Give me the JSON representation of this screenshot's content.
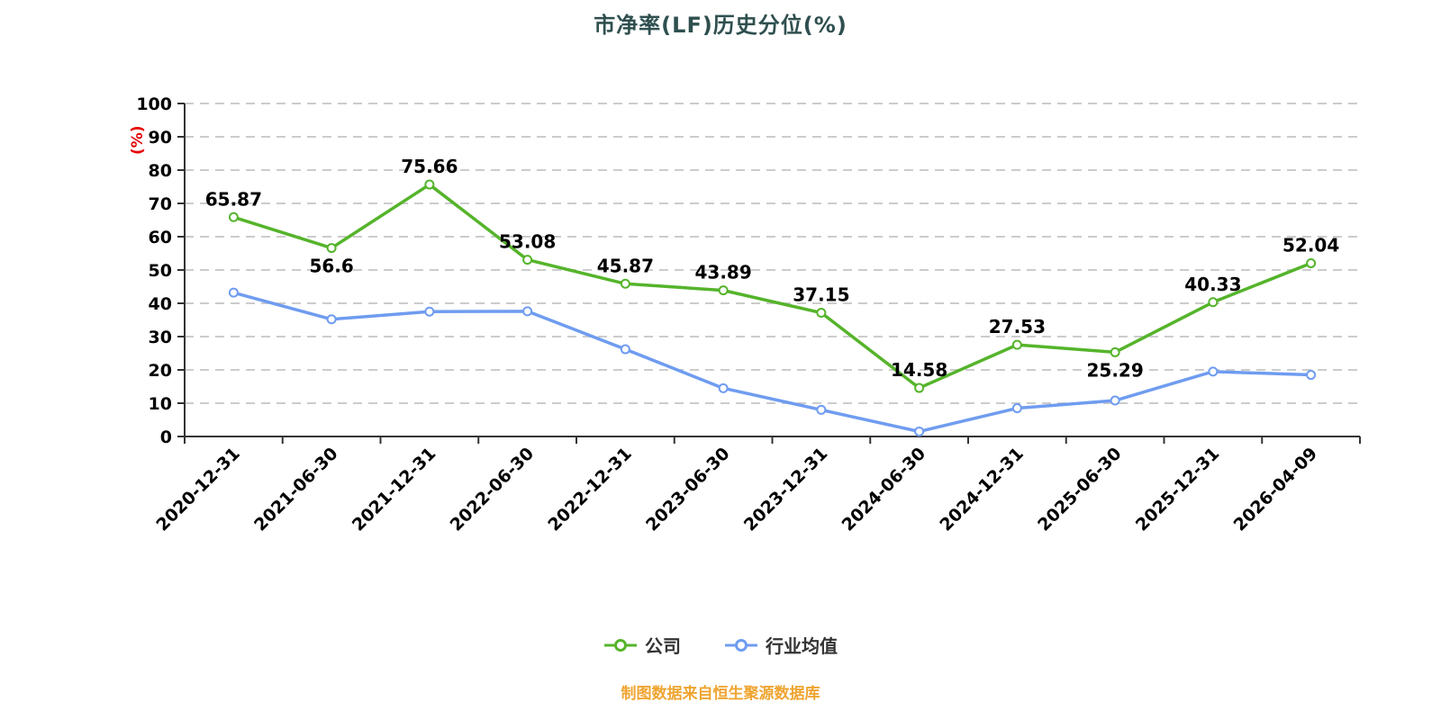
{
  "title": "市净率(LF)历史分位(%)",
  "source_note": "制图数据来自恒生聚源数据库",
  "legend": [
    {
      "label": "公司",
      "color": "#55b42b"
    },
    {
      "label": "行业均值",
      "color": "#6f9cf0"
    }
  ],
  "colors": {
    "title": "#2f4f4f",
    "grid": "#cccccc",
    "axis": "#333333",
    "tick_text": "#000000",
    "value_label": "#000000",
    "unit": "#e60000",
    "source_note": "#efa430",
    "company": "#55b42b",
    "industry": "#6f9cf0"
  },
  "chart_data": {
    "type": "line",
    "title": "市净率(LF)历史分位(%)",
    "categories": [
      "2020-12-31",
      "2021-06-30",
      "2021-12-31",
      "2022-06-30",
      "2022-12-31",
      "2023-06-30",
      "2023-12-31",
      "2024-06-30",
      "2024-12-31",
      "2025-06-30",
      "2025-12-31",
      "2026-04-09"
    ],
    "series": [
      {
        "name": "公司",
        "color": "#55b42b",
        "values": [
          65.87,
          56.6,
          75.66,
          53.08,
          45.87,
          43.89,
          37.15,
          14.58,
          27.53,
          25.29,
          40.33,
          52.04
        ],
        "show_labels": true,
        "label_positions": [
          "top",
          "bottom",
          "top",
          "top",
          "top",
          "top",
          "top",
          "top",
          "top",
          "bottom",
          "top",
          "top"
        ]
      },
      {
        "name": "行业均值",
        "color": "#6f9cf0",
        "values": [
          43.2,
          35.2,
          37.5,
          37.6,
          26.2,
          14.5,
          8.0,
          1.5,
          8.5,
          10.8,
          19.5,
          18.5
        ],
        "show_labels": false
      }
    ],
    "xlabel": "",
    "ylabel": "(%)",
    "ylim": [
      0,
      100
    ],
    "y_ticks": [
      0,
      10,
      20,
      30,
      40,
      50,
      60,
      70,
      80,
      90,
      100
    ],
    "grid": "horizontal dashed",
    "legend_position": "bottom"
  }
}
